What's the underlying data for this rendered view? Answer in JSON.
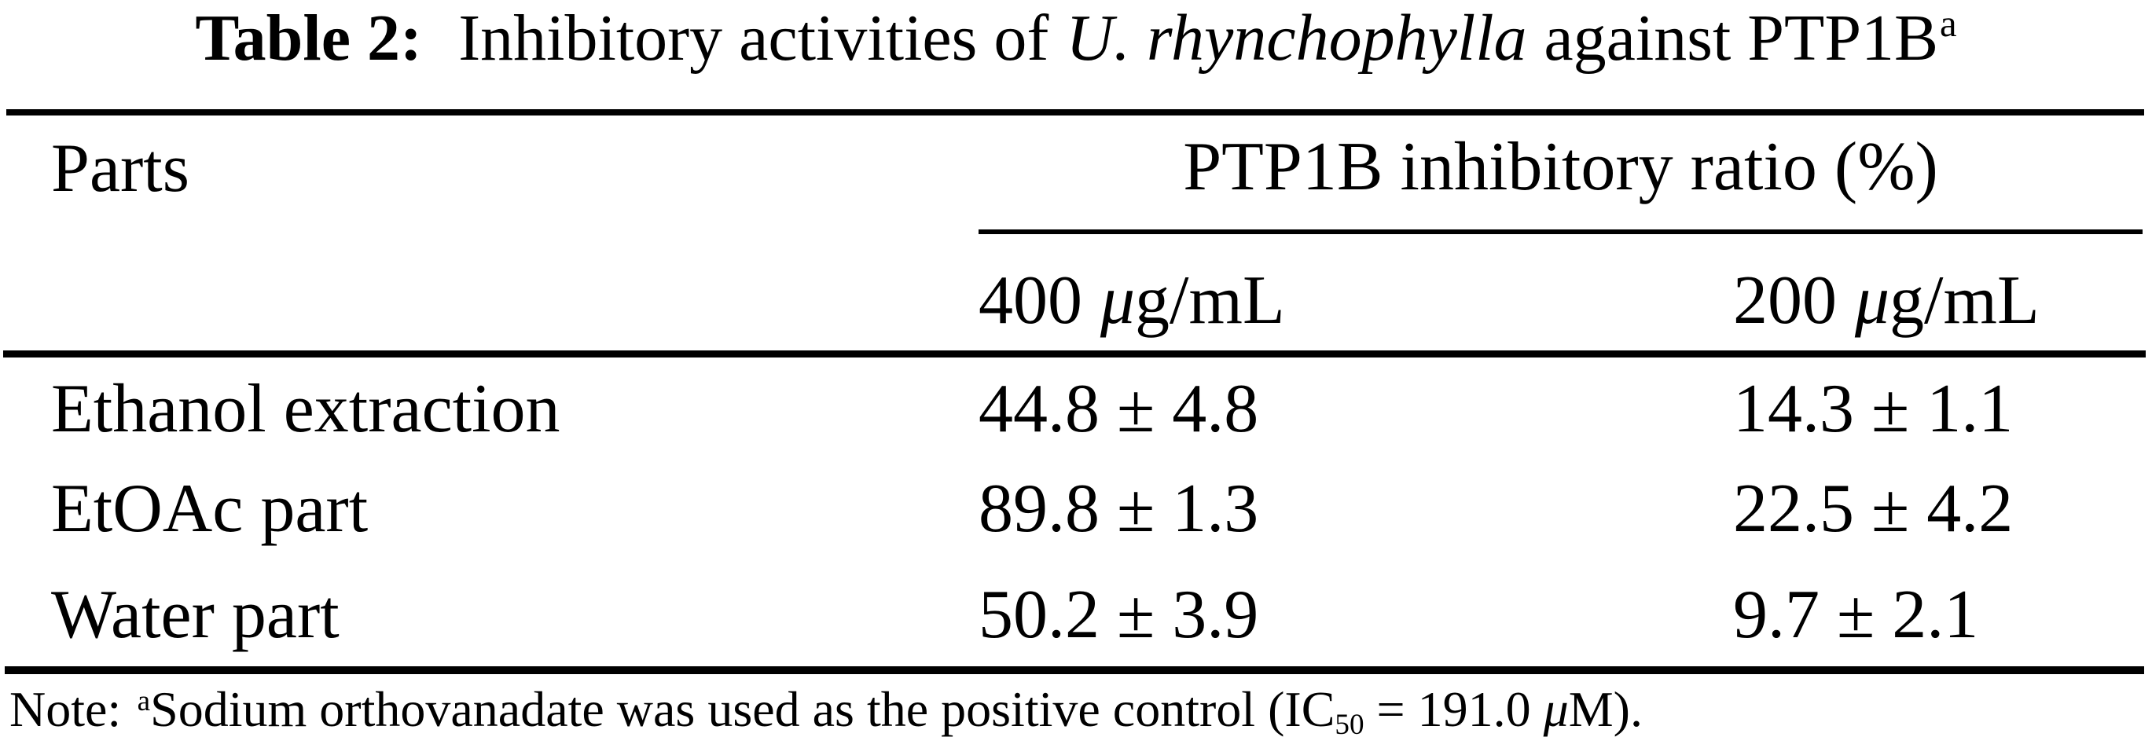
{
  "title": {
    "label": "Table 2:",
    "before_species": "Inhibitory activities of",
    "species_italic": "U. rhynchophylla",
    "after_species": "against PTP1B",
    "footnote_marker": "a"
  },
  "table": {
    "row_header": "Parts",
    "group_header": "PTP1B inhibitory ratio (%)",
    "columns": [
      {
        "amount": "400",
        "mu": "μ",
        "unit": "g/mL"
      },
      {
        "amount": "200",
        "mu": "μ",
        "unit": "g/mL"
      }
    ],
    "rows": [
      {
        "part": "Ethanol extraction",
        "ratio_400": "44.8 ± 4.8",
        "ratio_200": "14.3 ± 1.1"
      },
      {
        "part": "EtOAc part",
        "ratio_400": "89.8 ± 1.3",
        "ratio_200": "22.5 ± 4.2"
      },
      {
        "part": "Water part",
        "ratio_400": "50.2 ± 3.9",
        "ratio_200": "9.7 ± 2.1"
      }
    ]
  },
  "note": {
    "prefix": "Note:",
    "marker": "a",
    "text_before_sub": "Sodium orthovanadate was used as the positive control (IC",
    "subscript": "50",
    "text_after_sub": " = 191.0 ",
    "mu": "μ",
    "text_end": "M)."
  },
  "colors": {
    "background": "#ffffff",
    "text": "#000000",
    "rule": "#000000"
  },
  "chart_data": {
    "type": "table",
    "title": "Table 2: Inhibitory activities of U. rhynchophylla against PTP1B",
    "group_header": "PTP1B inhibitory ratio (%)",
    "columns": [
      "Parts",
      "400 μg/mL",
      "200 μg/mL"
    ],
    "rows": [
      [
        "Ethanol extraction",
        "44.8 ± 4.8",
        "14.3 ± 1.1"
      ],
      [
        "EtOAc part",
        "89.8 ± 1.3",
        "22.5 ± 4.2"
      ],
      [
        "Water part",
        "50.2 ± 3.9",
        "9.7 ± 2.1"
      ]
    ],
    "values": [
      {
        "part": "Ethanol extraction",
        "inhibition_400ug_mean": 44.8,
        "inhibition_400ug_sd": 4.8,
        "inhibition_200ug_mean": 14.3,
        "inhibition_200ug_sd": 1.1
      },
      {
        "part": "EtOAc part",
        "inhibition_400ug_mean": 89.8,
        "inhibition_400ug_sd": 1.3,
        "inhibition_200ug_mean": 22.5,
        "inhibition_200ug_sd": 4.2
      },
      {
        "part": "Water part",
        "inhibition_400ug_mean": 50.2,
        "inhibition_400ug_sd": 3.9,
        "inhibition_200ug_mean": 9.7,
        "inhibition_200ug_sd": 2.1
      }
    ],
    "note": "Note: aSodium orthovanadate was used as the positive control (IC50 = 191.0 μM)."
  }
}
